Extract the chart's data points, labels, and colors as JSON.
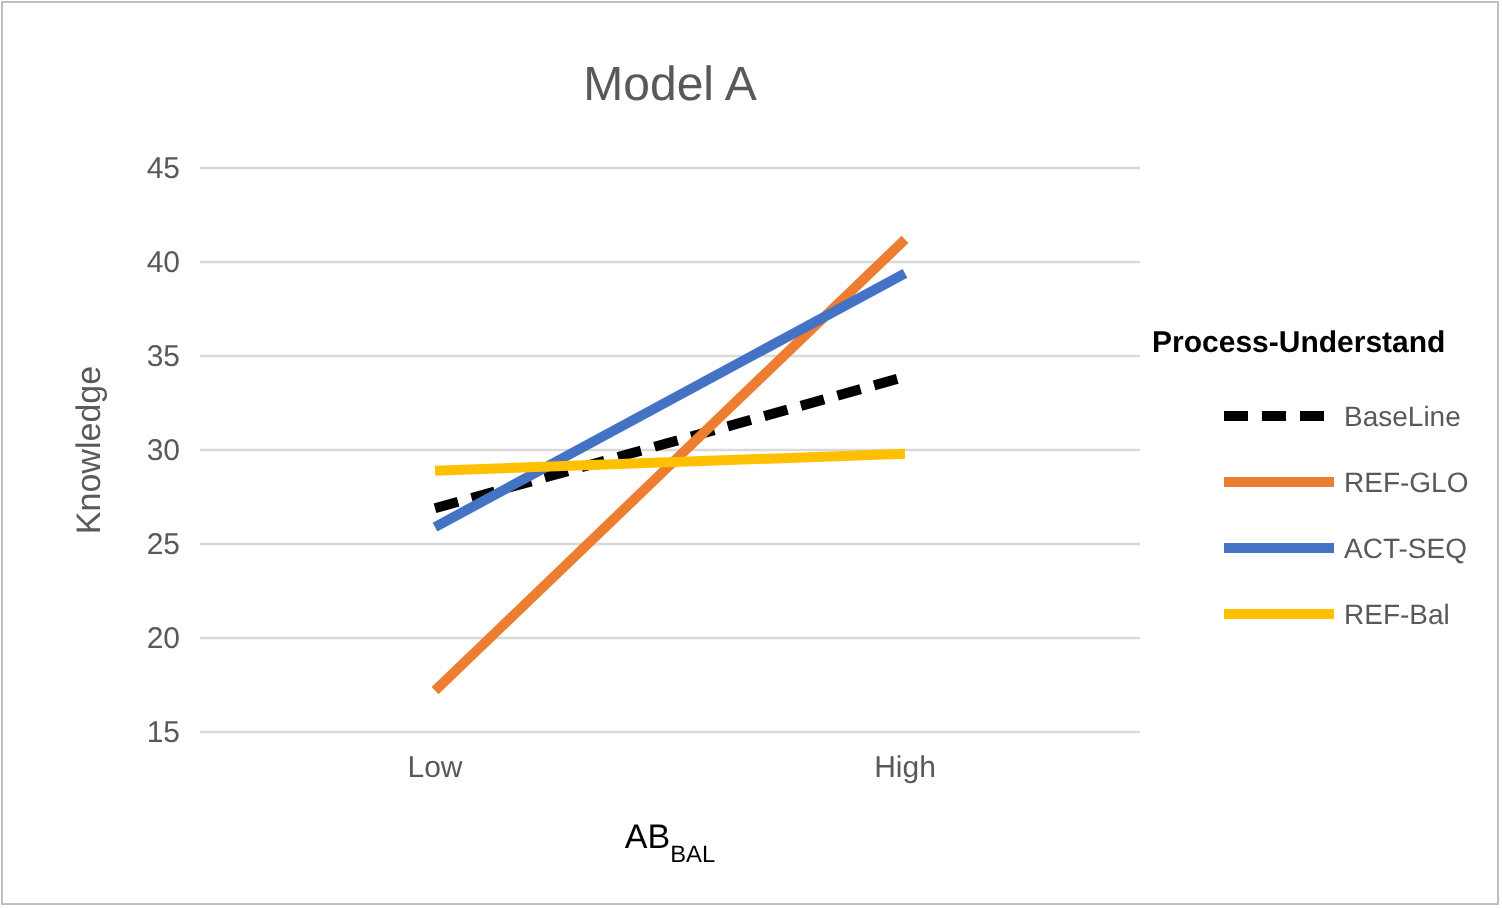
{
  "chart_data": {
    "type": "line",
    "title": "Model A",
    "xlabel": "AB$_{BAL}$",
    "ylabel": "Knowledge",
    "legend_title": "Process-Understand",
    "categories": [
      "Low",
      "High"
    ],
    "series": [
      {
        "name": "BaseLine",
        "color": "#000000",
        "values": [
          26.9,
          33.9
        ],
        "line_style": "dashed"
      },
      {
        "name": "REF-GLO",
        "color": "#ed7d31",
        "values": [
          17.2,
          41.2
        ]
      },
      {
        "name": "ACT-SEQ",
        "color": "#4472c4",
        "values": [
          25.9,
          39.4
        ]
      },
      {
        "name": "REF-Bal",
        "color": "#ffc000",
        "values": [
          28.9,
          29.8
        ]
      }
    ],
    "ylim": [
      15,
      45
    ],
    "yticks": [
      15,
      20,
      25,
      30,
      35,
      40,
      45
    ],
    "grid": "y",
    "legend": "right",
    "marker": "none",
    "line_style": "solid"
  }
}
